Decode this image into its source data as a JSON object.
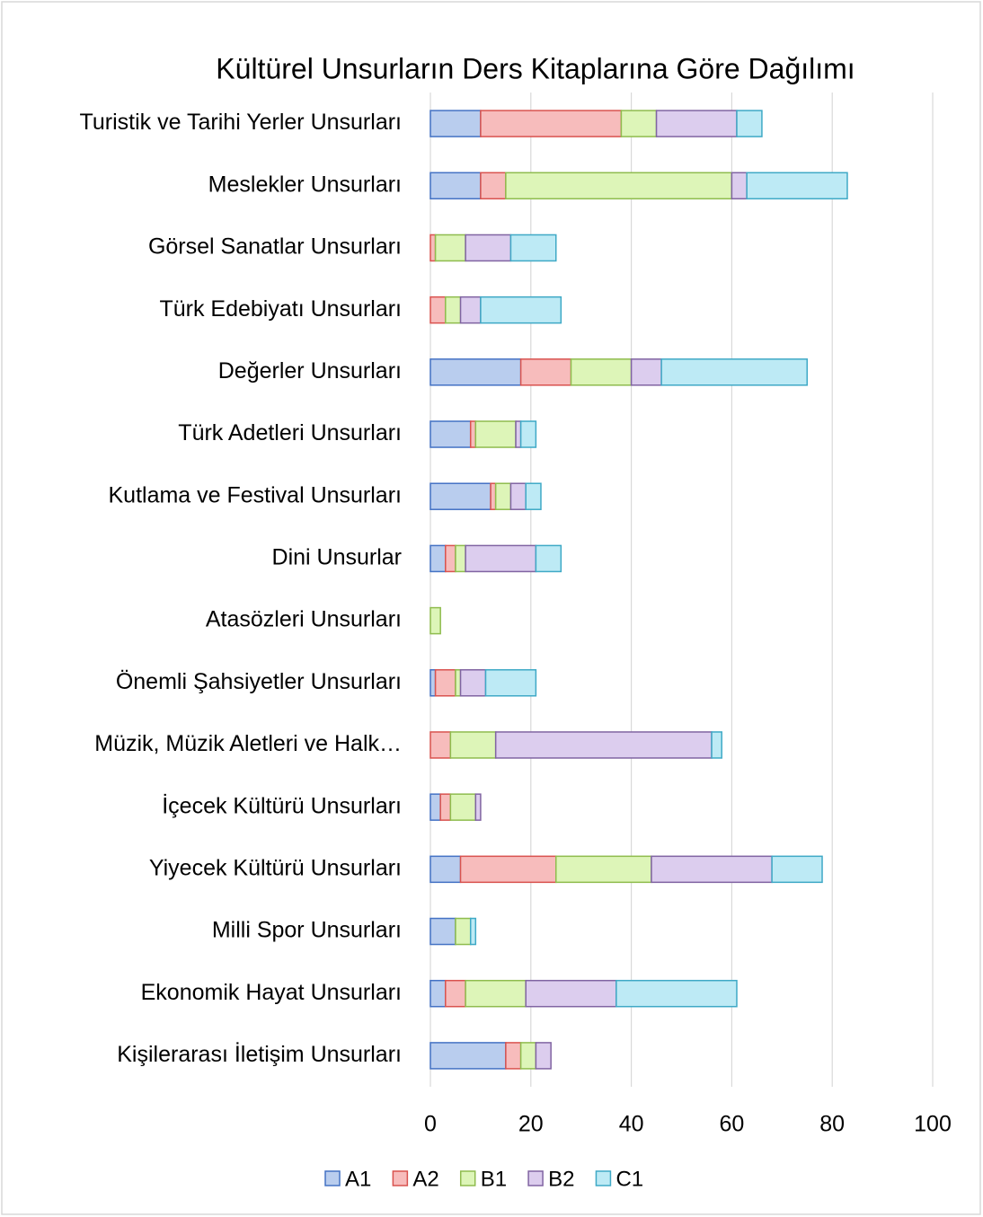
{
  "chart_data": {
    "type": "barh-stacked",
    "title": "Kültürel Unsurların Ders Kitaplarına Göre Dağılımı",
    "categories": [
      "Turistik ve Tarihi Yerler Unsurları",
      "Meslekler Unsurları",
      "Görsel Sanatlar Unsurları",
      "Türk Edebiyatı Unsurları",
      "Değerler Unsurları",
      "Türk Adetleri Unsurları",
      "Kutlama ve Festival Unsurları",
      "Dini Unsurlar",
      "Atasözleri Unsurları",
      "Önemli Şahsiyetler Unsurları",
      "Müzik, Müzik Aletleri ve Halk…",
      "İçecek Kültürü Unsurları",
      "Yiyecek Kültürü Unsurları",
      "Milli Spor Unsurları",
      "Ekonomik Hayat Unsurları",
      "Kişilerarası İletişim Unsurları"
    ],
    "series": [
      {
        "name": "A1",
        "color": "#b9cdee",
        "edgecolor": "#4472c4",
        "values": [
          10,
          10,
          0,
          0,
          18,
          8,
          12,
          3,
          0,
          1,
          0,
          2,
          6,
          5,
          3,
          15
        ]
      },
      {
        "name": "A2",
        "color": "#f7bcbc",
        "edgecolor": "#d9534f",
        "values": [
          28,
          5,
          1,
          3,
          10,
          1,
          1,
          2,
          0,
          4,
          4,
          2,
          19,
          0,
          4,
          3
        ]
      },
      {
        "name": "B1",
        "color": "#ddf5b8",
        "edgecolor": "#8fbc4e",
        "values": [
          7,
          45,
          6,
          3,
          12,
          8,
          3,
          2,
          2,
          1,
          9,
          5,
          19,
          3,
          12,
          3
        ]
      },
      {
        "name": "B2",
        "color": "#dccdee",
        "edgecolor": "#8064a2",
        "values": [
          16,
          3,
          9,
          4,
          6,
          1,
          3,
          14,
          0,
          5,
          43,
          1,
          24,
          0,
          18,
          3
        ]
      },
      {
        "name": "C1",
        "color": "#bdeaf5",
        "edgecolor": "#3fa9c6",
        "values": [
          5,
          20,
          9,
          16,
          29,
          3,
          3,
          5,
          0,
          10,
          2,
          0,
          10,
          1,
          24,
          0
        ]
      }
    ],
    "xlim": [
      0,
      100
    ],
    "xticks": [
      0,
      20,
      40,
      60,
      80,
      100
    ],
    "grid": true,
    "legend": "bottom"
  }
}
